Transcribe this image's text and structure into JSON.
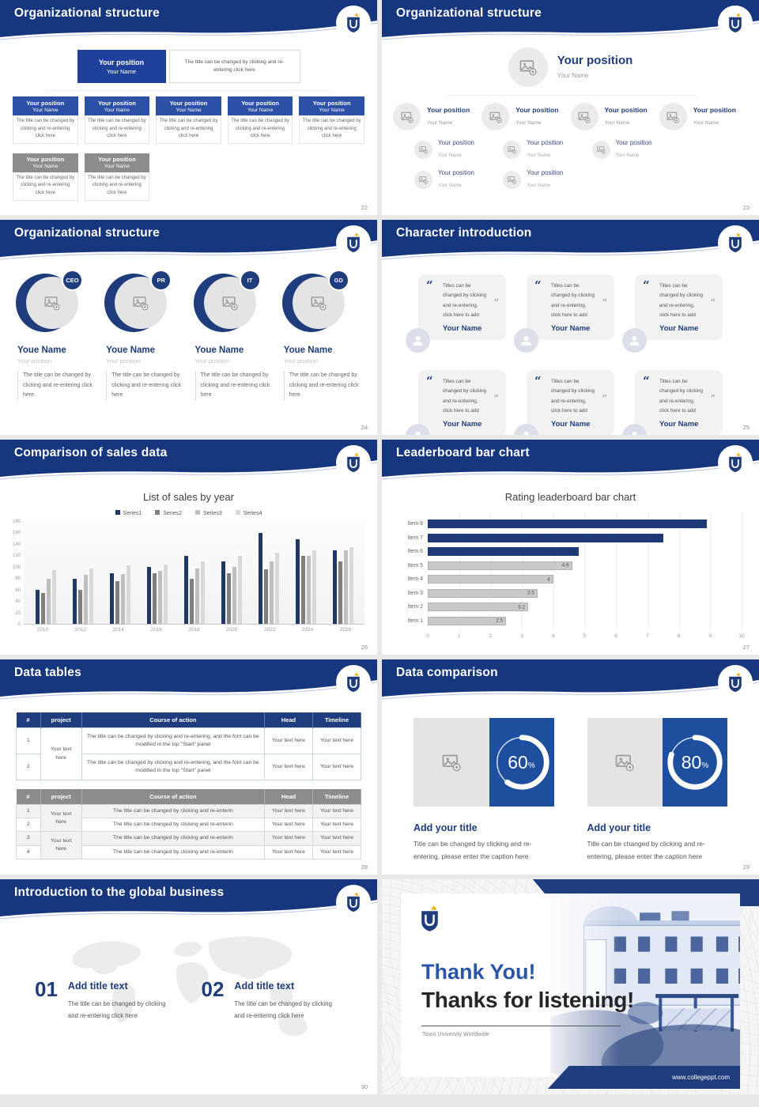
{
  "icons": {
    "quote_open": "“",
    "quote_close": "”"
  },
  "slides": [
    {
      "id": "org-structure-boxes",
      "title": "Organizational structure",
      "page": "22",
      "root": {
        "position": "Your position",
        "name": "Your Name",
        "note": "The title can be changed by clicking and re-entering click here"
      },
      "level1": [
        {
          "position": "Your position",
          "name": "Your Name",
          "desc": "The title can be changed by clicking and re-entering click here"
        },
        {
          "position": "Your position",
          "name": "Your Name",
          "desc": "The title can be changed by clicking and re-entering click here"
        },
        {
          "position": "Your position",
          "name": "Your Name",
          "desc": "The title can be changed by clicking and re-entering click here"
        },
        {
          "position": "Your position",
          "name": "Your Name",
          "desc": "The title can be changed by clicking and re-entering click here"
        },
        {
          "position": "Your position",
          "name": "Your Name",
          "desc": "The title can be changed by clicking and re-entering click here"
        }
      ],
      "level2": [
        {
          "position": "Your position",
          "name": "Your Name",
          "desc": "The title can be changed by clicking and re-entering click here"
        },
        {
          "position": "Your position",
          "name": "Your Name",
          "desc": "The title can be changed by clicking and re-entering click here"
        }
      ]
    },
    {
      "id": "org-structure-photo-tree",
      "title": "Organizational structure",
      "page": "23",
      "root": {
        "position": "Your position",
        "name": "Your Name"
      },
      "branches": [
        {
          "position": "Your position",
          "name": "Your Name"
        },
        {
          "position": "Your position",
          "name": "Your Name"
        },
        {
          "position": "Your position",
          "name": "Your Name"
        },
        {
          "position": "Your position",
          "name": "Your Name"
        }
      ],
      "sub_row1": [
        {
          "position": "Your position",
          "name": "Your Name"
        },
        {
          "position": "Your position",
          "name": "Your Name"
        },
        {
          "position": "Your position",
          "name": "Your Name"
        }
      ],
      "sub_row2": [
        {
          "position": "Your position",
          "name": "Your Name"
        },
        {
          "position": "Your position",
          "name": "Your Name"
        }
      ]
    },
    {
      "id": "org-structure-leaders",
      "title": "Organizational structure",
      "page": "24",
      "members": [
        {
          "badge": "CEO",
          "name": "Youe Name",
          "position": "Your position",
          "desc": "The title can be changed by clicking and re-entering click here"
        },
        {
          "badge": "PR",
          "name": "Youe Name",
          "position": "Your position",
          "desc": "The title can be changed by clicking and re-entering click here"
        },
        {
          "badge": "IT",
          "name": "Youe Name",
          "position": "Your position",
          "desc": "The title can be changed by clicking and re-entering click here"
        },
        {
          "badge": "GD",
          "name": "Youe Name",
          "position": "Your position",
          "desc": "The title can be changed by clicking and re-entering click here"
        }
      ]
    },
    {
      "id": "character-introduction",
      "title": "Character introduction",
      "page": "25",
      "cards": [
        {
          "quote": "Titles can be changed by clicking and re-entering, click here to add",
          "name": "Your Name"
        },
        {
          "quote": "Titles can be changed by clicking and re-entering, click here to add",
          "name": "Your Name"
        },
        {
          "quote": "Titles can be changed by clicking and re-entering, click here to add",
          "name": "Your Name"
        },
        {
          "quote": "Titles can be changed by clicking and re-entering, click here to add",
          "name": "Your Name"
        },
        {
          "quote": "Titles can be changed by clicking and re-entering, click here to add",
          "name": "Your Name"
        },
        {
          "quote": "Titles can be changed by clicking and re-entering, click here to add",
          "name": "Your Name"
        }
      ]
    },
    {
      "id": "sales-comparison",
      "title": "Comparison of sales data",
      "page": "26",
      "chart_data": {
        "type": "bar",
        "title": "List of sales by year",
        "categories": [
          "2010",
          "2012",
          "2014",
          "2016",
          "2018",
          "2020",
          "2022",
          "2024",
          "2026"
        ],
        "series": [
          {
            "name": "Series1",
            "color": "#1F3864",
            "values": [
              60,
              80,
              90,
              100,
              120,
              110,
              160,
              150,
              130
            ]
          },
          {
            "name": "Series2",
            "color": "#7F7F7F",
            "values": [
              55,
              60,
              75,
              90,
              80,
              90,
              96,
              120,
              110
            ]
          },
          {
            "name": "Series3",
            "color": "#BFBFBF",
            "values": [
              80,
              86,
              88,
              93,
              97,
              100,
              110,
              120,
              130
            ]
          },
          {
            "name": "Series4",
            "color": "#D9D9D9",
            "values": [
              95,
              98,
              103,
              105,
              110,
              120,
              126,
              130,
              135
            ]
          }
        ],
        "xlabel": "",
        "ylabel": "",
        "ylim": [
          0,
          180
        ],
        "ytick": 20,
        "legend_position": "top",
        "grid": false
      }
    },
    {
      "id": "leaderboard-bar-chart",
      "title": "Leaderboard bar chart",
      "page": "27",
      "chart_data": {
        "type": "bar-horizontal",
        "title": "Rating leaderboard bar chart",
        "categories": [
          "Item 8",
          "Item 7",
          "Item 6",
          "Item 5",
          "Item 4",
          "Item 3",
          "Item 2",
          "Item 1"
        ],
        "values": [
          8.9,
          7.5,
          4.8,
          4.6,
          4,
          3.5,
          3.2,
          2.5
        ],
        "labels": [
          "8.9",
          "7.5",
          "4.8",
          "4.6",
          "4",
          "3.5",
          "3.2",
          "2.5"
        ],
        "bar_colors": [
          "#1F3A78",
          "#1F3A78",
          "#1F3A78",
          "#C9C9C9",
          "#C9C9C9",
          "#C9C9C9",
          "#C9C9C9",
          "#C9C9C9"
        ],
        "xlim": [
          0,
          10
        ],
        "xtick": 1,
        "grid": true
      }
    },
    {
      "id": "data-tables",
      "title": "Data tables",
      "page": "28",
      "table1": {
        "headers": [
          "#",
          "project",
          "Course of action",
          "Head",
          "Timeline"
        ],
        "project": "Your text here",
        "rows": [
          {
            "num": "1",
            "course": "The title can be changed by clicking and re-entering, and the font can be modified in the top \"Start\" panel",
            "head": "Your text here",
            "timeline": "Your text here"
          },
          {
            "num": "2",
            "course": "The title can be changed by clicking and re-entering, and the font can be modified in the top \"Start\" panel",
            "head": "Your text here",
            "timeline": "Your text here"
          }
        ]
      },
      "table2": {
        "headers": [
          "#",
          "project",
          "Course of action",
          "Head",
          "Timeline"
        ],
        "project_groups": [
          "Your text here",
          "Your text here"
        ],
        "rows": [
          {
            "num": "1",
            "course": "The title can be changed by clicking and re-enterin",
            "head": "Your text here",
            "timeline": "Your text here"
          },
          {
            "num": "2",
            "course": "The title can be changed by clicking and re-enterin",
            "head": "Your text here",
            "timeline": "Your text here"
          },
          {
            "num": "3",
            "course": "The title can be changed by clicking and re-enterin",
            "head": "Your text here",
            "timeline": "Your text here"
          },
          {
            "num": "4",
            "course": "The title can be changed by clicking and re-enterin",
            "head": "Your text here",
            "timeline": "Your text here"
          }
        ]
      }
    },
    {
      "id": "data-comparison",
      "title": "Data comparison",
      "page": "29",
      "panels": [
        {
          "percent": 60,
          "percent_label": "60",
          "percent_suffix": "%",
          "title": "Add your title",
          "caption": "Title can be changed by clicking and re-entering, please enter the caption here"
        },
        {
          "percent": 80,
          "percent_label": "80",
          "percent_suffix": "%",
          "title": "Add your title",
          "caption": "Title can be changed by clicking and re-entering, please enter the caption here"
        }
      ]
    },
    {
      "id": "global-business",
      "title": "Introduction to the global business",
      "page": "30",
      "items": [
        {
          "number": "01",
          "title": "Add title text",
          "desc": "The title can be changed by clicking and re-entering click here"
        },
        {
          "number": "02",
          "title": "Add title text",
          "desc": "The title can be changed by clicking and re-entering click here"
        }
      ]
    },
    {
      "id": "thank-you",
      "heading": "Thank You!",
      "subheading": "Thanks for listening!",
      "org": "Touro University Worldwide",
      "website": "www.collegeppt.com"
    }
  ]
}
